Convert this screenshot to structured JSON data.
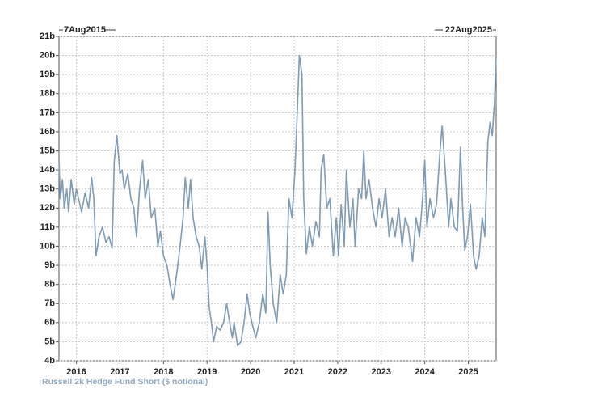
{
  "chart_data": {
    "type": "line",
    "start_label": "7Aug2015",
    "end_label": "22Aug2025",
    "x": [
      2015.6,
      2015.63,
      2015.68,
      2015.72,
      2015.78,
      2015.82,
      2015.88,
      2015.95,
      2016.0,
      2016.05,
      2016.12,
      2016.2,
      2016.28,
      2016.35,
      2016.4,
      2016.45,
      2016.52,
      2016.6,
      2016.68,
      2016.75,
      2016.82,
      2016.87,
      2016.93,
      2017.0,
      2017.05,
      2017.1,
      2017.18,
      2017.25,
      2017.32,
      2017.38,
      2017.45,
      2017.52,
      2017.58,
      2017.65,
      2017.72,
      2017.8,
      2017.87,
      2017.93,
      2018.0,
      2018.08,
      2018.15,
      2018.22,
      2018.3,
      2018.38,
      2018.45,
      2018.5,
      2018.57,
      2018.62,
      2018.68,
      2018.75,
      2018.82,
      2018.88,
      2018.95,
      2019.0,
      2019.05,
      2019.1,
      2019.15,
      2019.22,
      2019.3,
      2019.38,
      2019.45,
      2019.52,
      2019.58,
      2019.62,
      2019.7,
      2019.78,
      2019.85,
      2019.92,
      2019.98,
      2020.05,
      2020.12,
      2020.2,
      2020.28,
      2020.35,
      2020.4,
      2020.45,
      2020.52,
      2020.6,
      2020.68,
      2020.75,
      2020.82,
      2020.88,
      2020.95,
      2021.02,
      2021.08,
      2021.12,
      2021.18,
      2021.22,
      2021.28,
      2021.35,
      2021.42,
      2021.5,
      2021.58,
      2021.62,
      2021.68,
      2021.75,
      2021.82,
      2021.9,
      2021.97,
      2022.02,
      2022.08,
      2022.15,
      2022.2,
      2022.28,
      2022.35,
      2022.4,
      2022.48,
      2022.55,
      2022.6,
      2022.65,
      2022.72,
      2022.8,
      2022.88,
      2022.95,
      2023.02,
      2023.1,
      2023.18,
      2023.25,
      2023.32,
      2023.4,
      2023.48,
      2023.55,
      2023.62,
      2023.72,
      2023.8,
      2023.88,
      2023.95,
      2024.0,
      2024.05,
      2024.12,
      2024.2,
      2024.27,
      2024.35,
      2024.4,
      2024.47,
      2024.55,
      2024.6,
      2024.68,
      2024.75,
      2024.82,
      2024.87,
      2024.92,
      2024.98,
      2025.05,
      2025.12,
      2025.18,
      2025.25,
      2025.32,
      2025.38,
      2025.45,
      2025.5,
      2025.55,
      2025.6,
      2025.64
    ],
    "series": [
      {
        "name": "Russell 2k Hedge Fund Short ($ notional)",
        "color": "#7d9bb5",
        "values": [
          14.5,
          12.5,
          13.5,
          12,
          13,
          11.8,
          13.5,
          12.2,
          13,
          12.5,
          11.8,
          12.8,
          12,
          13.6,
          12.5,
          9.5,
          10.5,
          11,
          10.2,
          10.5,
          9.9,
          14.5,
          15.8,
          13.8,
          14,
          13,
          13.8,
          12.5,
          12,
          10.5,
          13,
          14.5,
          12.5,
          13.5,
          11.5,
          12,
          10,
          10.8,
          9.5,
          9,
          8,
          7.2,
          8.5,
          10,
          11.5,
          13.6,
          12,
          13.5,
          11.5,
          10.5,
          10,
          8.8,
          10.5,
          9,
          6.8,
          6,
          5,
          5.8,
          5.6,
          6,
          7,
          6,
          5.2,
          6,
          4.8,
          5,
          6,
          7.5,
          6.5,
          5.8,
          5.2,
          6,
          7.5,
          6.5,
          11.8,
          9,
          7,
          6,
          8.5,
          7.5,
          8.5,
          12.5,
          11.5,
          14,
          17.5,
          20,
          19,
          12.5,
          9.6,
          11,
          10,
          11.3,
          10.5,
          14,
          14.8,
          12,
          12.5,
          9.5,
          11.5,
          9.5,
          12.2,
          10,
          14,
          11,
          12.5,
          10,
          13,
          12.5,
          15,
          12.5,
          13.5,
          12,
          11,
          12.5,
          11.5,
          13,
          10.5,
          11.5,
          10.5,
          12,
          10,
          11.5,
          11,
          9.2,
          11.5,
          10.5,
          12.5,
          14.5,
          11,
          12.5,
          11.5,
          12.2,
          15,
          16.3,
          14,
          11,
          12.5,
          11,
          10.8,
          15.2,
          12,
          9.8,
          10.5,
          12.2,
          9.5,
          8.8,
          9.5,
          11.5,
          10.5,
          15.5,
          16.5,
          15.8,
          17.5,
          20
        ]
      }
    ],
    "xlim": [
      2015.6,
      2025.64
    ],
    "xticks": [
      2016,
      2017,
      2018,
      2019,
      2020,
      2021,
      2022,
      2023,
      2024,
      2025
    ],
    "ylim": [
      4,
      21
    ],
    "yticks": [
      {
        "value": 4,
        "label": "4b"
      },
      {
        "value": 5,
        "label": "5b"
      },
      {
        "value": 6,
        "label": "6b"
      },
      {
        "value": 7,
        "label": "7b"
      },
      {
        "value": 8,
        "label": "8b"
      },
      {
        "value": 9,
        "label": "9b"
      },
      {
        "value": 10,
        "label": "10b"
      },
      {
        "value": 11,
        "label": "11b"
      },
      {
        "value": 12,
        "label": "12b"
      },
      {
        "value": 13,
        "label": "13b"
      },
      {
        "value": 14,
        "label": "14b"
      },
      {
        "value": 15,
        "label": "15b"
      },
      {
        "value": 16,
        "label": "16b"
      },
      {
        "value": 17,
        "label": "17b"
      },
      {
        "value": 18,
        "label": "18b"
      },
      {
        "value": 19,
        "label": "19b"
      },
      {
        "value": 20,
        "label": "20b"
      },
      {
        "value": 21,
        "label": "21b"
      }
    ],
    "grid": true
  }
}
